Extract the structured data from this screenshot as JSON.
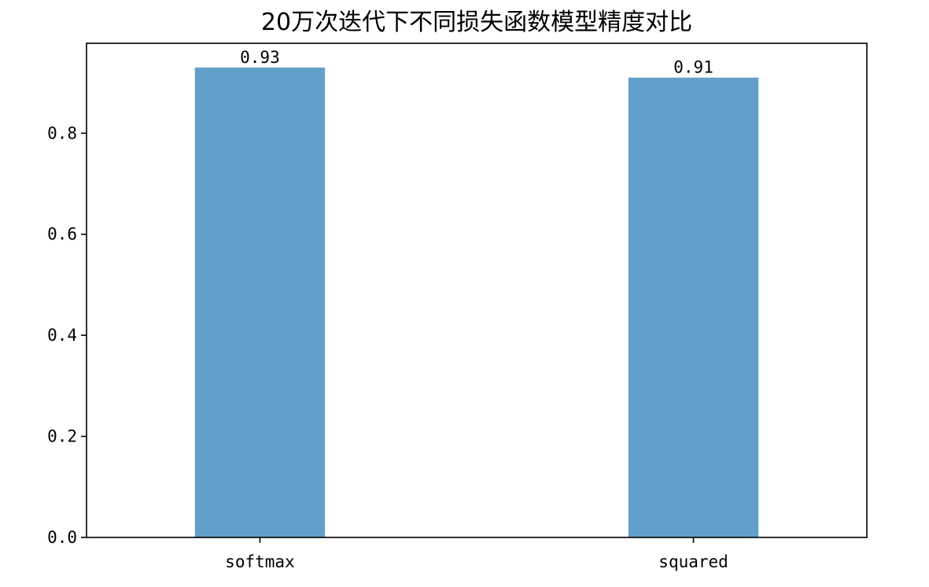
{
  "chart_data": {
    "type": "bar",
    "title": "20万次迭代下不同损失函数模型精度对比",
    "xlabel": "",
    "ylabel": "",
    "categories": [
      "softmax",
      "squared"
    ],
    "values": [
      0.93,
      0.91
    ],
    "data_labels": [
      "0.93",
      "0.91"
    ],
    "ylim": [
      0,
      0.978
    ],
    "yticks": [
      0.0,
      0.2,
      0.4,
      0.6,
      0.8
    ],
    "ytick_labels": [
      "0.0",
      "0.2",
      "0.4",
      "0.6",
      "0.8"
    ],
    "grid": false,
    "legend": "none",
    "bar_color": "#62a0cb"
  }
}
